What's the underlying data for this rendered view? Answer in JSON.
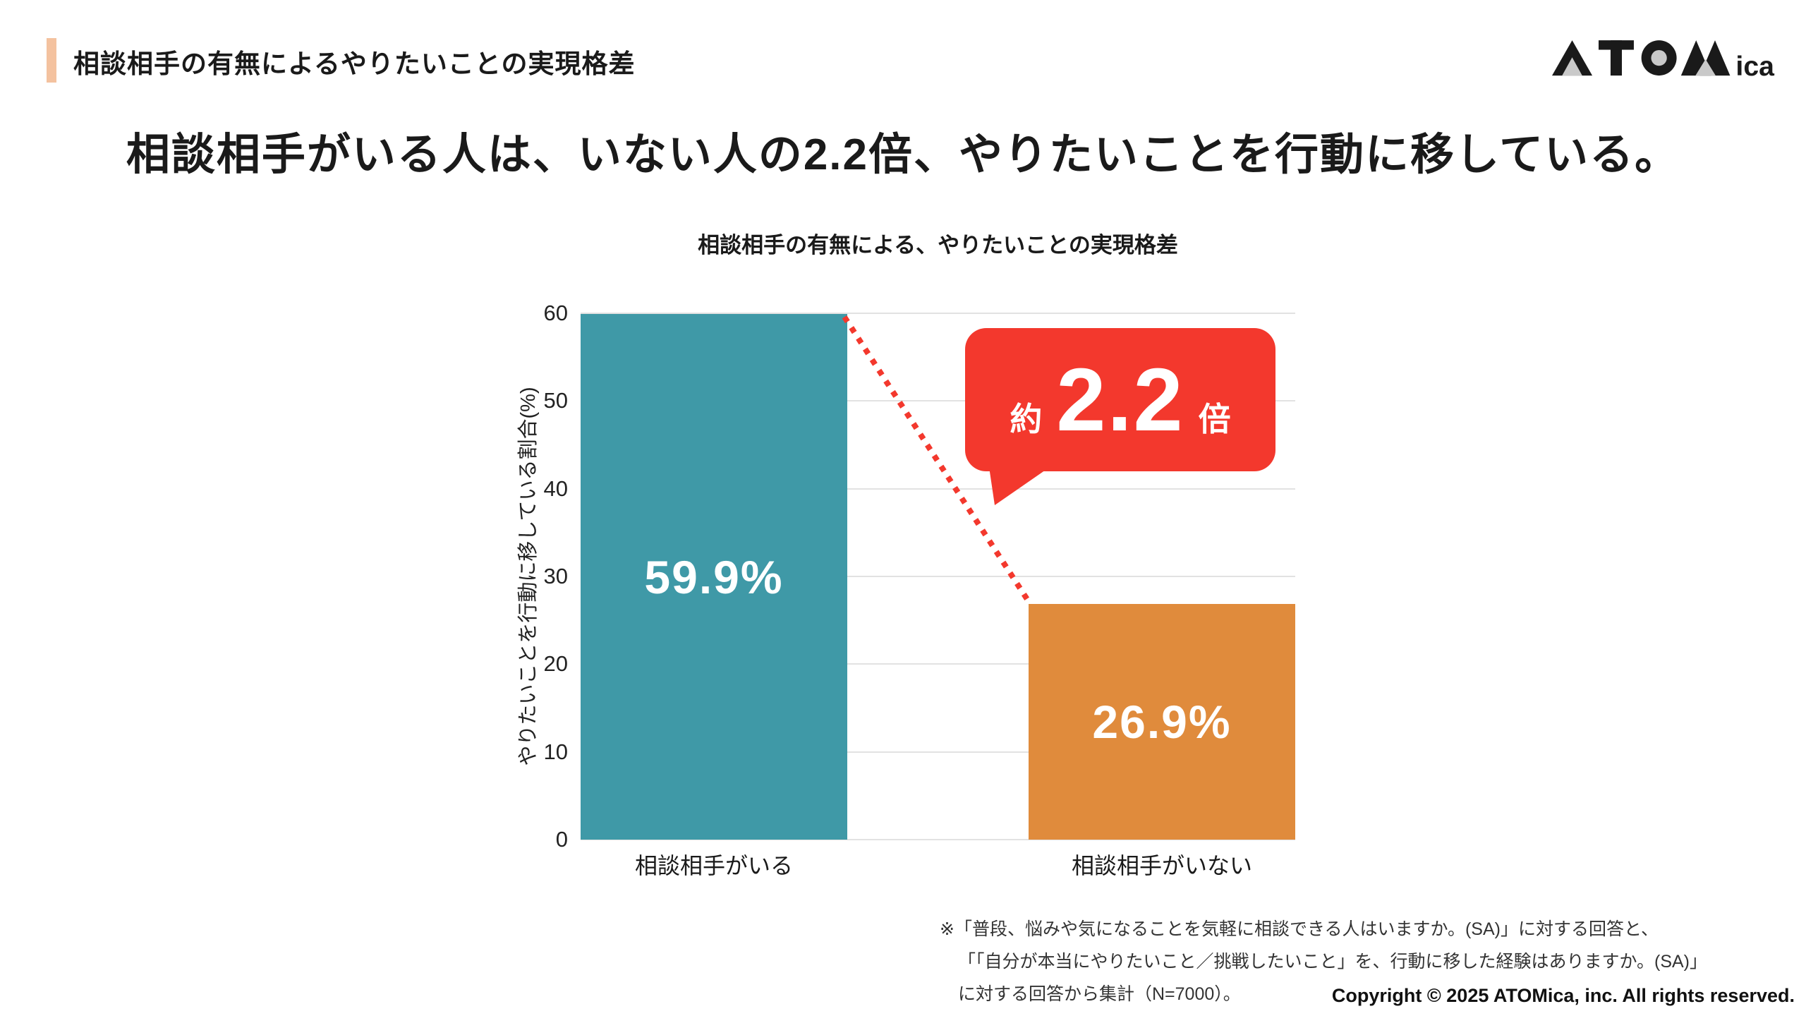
{
  "header": {
    "title": "相談相手の有無によるやりたいことの実現格差",
    "accent_color": "#F4C29F"
  },
  "logo": {
    "text_main": "ATOM",
    "text_suffix": "ica"
  },
  "main_title": "相談相手がいる人は、いない人の2.2倍、やりたいことを行動に移している。",
  "chart_data": {
    "type": "bar",
    "title": "相談相手の有無による、やりたいことの実現格差",
    "categories": [
      "相談相手がいる",
      "相談相手がいない"
    ],
    "values": [
      59.9,
      26.9
    ],
    "bar_labels": [
      "59.9%",
      "26.9%"
    ],
    "bar_colors": [
      "#3F99A7",
      "#E08B3C"
    ],
    "ylabel": "やりたいことを行動に移している割合(%)",
    "ylim": [
      0,
      60
    ],
    "yticks": [
      0,
      10,
      20,
      30,
      40,
      50,
      60
    ],
    "grid": true,
    "legend": "none",
    "annotation": {
      "prefix": "約",
      "value": "2.2",
      "suffix": "倍",
      "color": "#F3382D"
    }
  },
  "footnote": {
    "lines": [
      "※「普段、悩みや気になることを気軽に相談できる人はいますか。(SA)」に対する回答と、",
      "「「自分が本当にやりたいこと／挑戦したいこと」を、行動に移した経験はありますか。(SA)」",
      "に対する回答から集計（N=7000）。"
    ]
  },
  "copyright": "Copyright © 2025 ATOMica, inc. All rights reserved."
}
